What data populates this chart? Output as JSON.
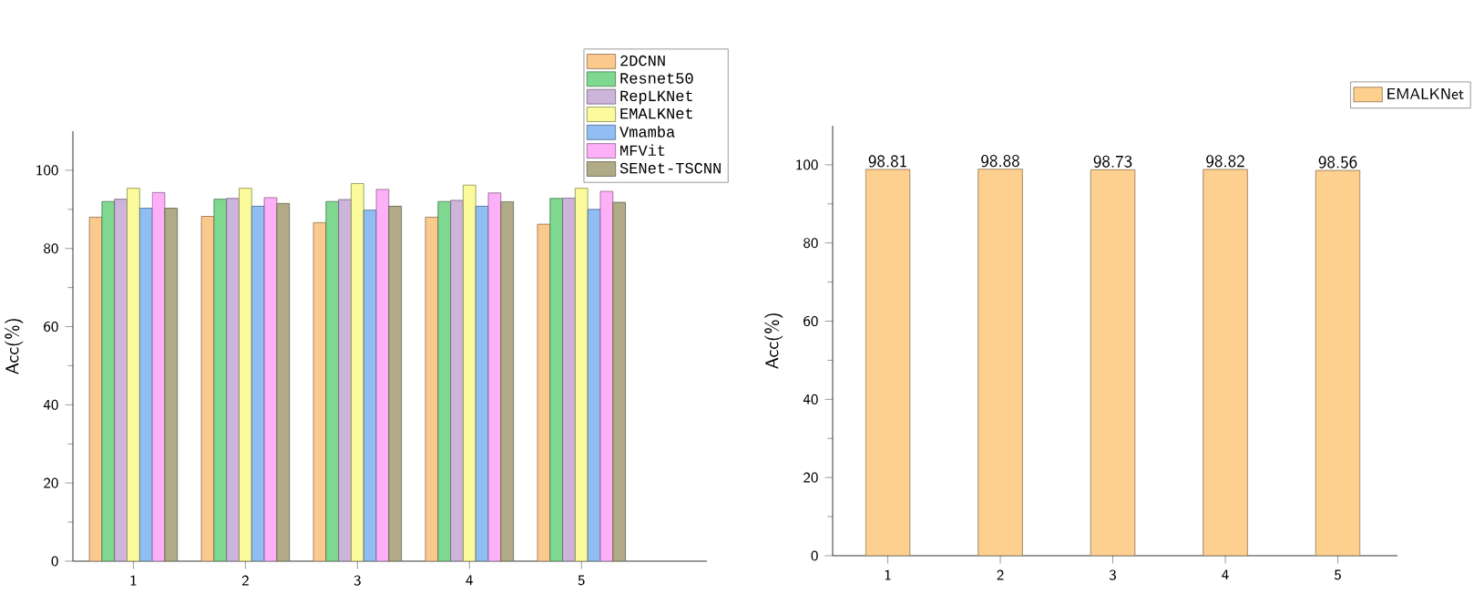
{
  "chart_data": [
    {
      "type": "bar",
      "ylabel": "Acc(%)",
      "categories": [
        "1",
        "2",
        "3",
        "4",
        "5"
      ],
      "ylim": [
        0,
        110
      ],
      "yticks": [
        0,
        20,
        40,
        60,
        80,
        100
      ],
      "legend": "top right",
      "series": [
        {
          "name": "2DCNN",
          "color": "#fcc98d",
          "values": [
            88.0,
            88.2,
            86.6,
            88.0,
            86.2
          ]
        },
        {
          "name": "Resnet50",
          "color": "#7fd88f",
          "values": [
            92.0,
            92.6,
            92.0,
            92.0,
            92.8
          ]
        },
        {
          "name": "RepLKNet",
          "color": "#cdb4da",
          "values": [
            92.6,
            92.8,
            92.5,
            92.3,
            92.9
          ]
        },
        {
          "name": "EMALKNet",
          "color": "#fbfb9b",
          "values": [
            95.4,
            95.4,
            96.6,
            96.2,
            95.4
          ]
        },
        {
          "name": "Vmamba",
          "color": "#90bdf3",
          "values": [
            90.3,
            90.8,
            89.8,
            90.8,
            90.0
          ]
        },
        {
          "name": "MFVit",
          "color": "#fdb0f8",
          "values": [
            94.3,
            93.0,
            95.1,
            94.2,
            94.6
          ]
        },
        {
          "name": "SENet-TSCNN",
          "color": "#b0ab86",
          "values": [
            90.3,
            91.5,
            90.8,
            92.0,
            91.8
          ]
        }
      ]
    },
    {
      "type": "bar",
      "ylabel": "Acc(%)",
      "categories": [
        "1",
        "2",
        "3",
        "4",
        "5"
      ],
      "ylim": [
        0,
        110
      ],
      "yticks": [
        0,
        20,
        40,
        60,
        80,
        100
      ],
      "legend": "top right",
      "data_labels": true,
      "series": [
        {
          "name": "EMALKNet",
          "color": "#fdd08f",
          "values": [
            98.81,
            98.88,
            98.73,
            98.82,
            98.56
          ]
        }
      ]
    }
  ]
}
